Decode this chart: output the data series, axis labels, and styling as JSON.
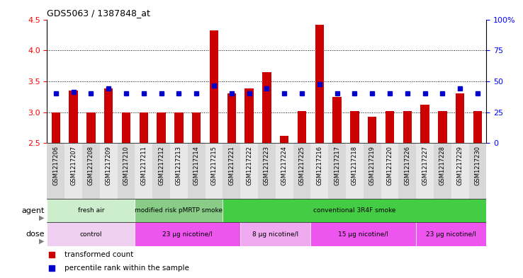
{
  "title": "GDS5063 / 1387848_at",
  "samples": [
    "GSM1217206",
    "GSM1217207",
    "GSM1217208",
    "GSM1217209",
    "GSM1217210",
    "GSM1217211",
    "GSM1217212",
    "GSM1217213",
    "GSM1217214",
    "GSM1217215",
    "GSM1217221",
    "GSM1217222",
    "GSM1217223",
    "GSM1217224",
    "GSM1217225",
    "GSM1217216",
    "GSM1217217",
    "GSM1217218",
    "GSM1217219",
    "GSM1217220",
    "GSM1217226",
    "GSM1217227",
    "GSM1217228",
    "GSM1217229",
    "GSM1217230"
  ],
  "bar_values": [
    3.0,
    3.35,
    3.0,
    3.38,
    3.0,
    3.0,
    3.0,
    3.0,
    3.0,
    4.32,
    3.3,
    3.38,
    3.65,
    2.62,
    3.02,
    4.42,
    3.25,
    3.02,
    2.93,
    3.02,
    3.02,
    3.12,
    3.02,
    3.3,
    3.02
  ],
  "blue_values": [
    3.3,
    3.33,
    3.3,
    3.38,
    3.3,
    3.3,
    3.3,
    3.3,
    3.3,
    3.43,
    3.3,
    3.3,
    3.38,
    3.3,
    3.3,
    3.45,
    3.3,
    3.3,
    3.3,
    3.3,
    3.3,
    3.3,
    3.3,
    3.38,
    3.3
  ],
  "ymin": 2.5,
  "ymax": 4.5,
  "bar_color": "#cc0000",
  "blue_color": "#0000cc",
  "agent_groups": [
    {
      "label": "fresh air",
      "start": 0,
      "end": 4,
      "color": "#cceecc"
    },
    {
      "label": "modified risk pMRTP smoke",
      "start": 5,
      "end": 9,
      "color": "#88cc88"
    },
    {
      "label": "conventional 3R4F smoke",
      "start": 10,
      "end": 24,
      "color": "#44cc44"
    }
  ],
  "dose_groups": [
    {
      "label": "control",
      "start": 0,
      "end": 4,
      "color": "#f0d0f0"
    },
    {
      "label": "23 μg nicotine/l",
      "start": 5,
      "end": 10,
      "color": "#ee55ee"
    },
    {
      "label": "8 μg nicotine/l",
      "start": 11,
      "end": 14,
      "color": "#f0aaf0"
    },
    {
      "label": "15 μg nicotine/l",
      "start": 15,
      "end": 20,
      "color": "#ee55ee"
    },
    {
      "label": "23 μg nicotine/l",
      "start": 21,
      "end": 24,
      "color": "#ee55ee"
    }
  ],
  "yticks_left": [
    2.5,
    3.0,
    3.5,
    4.0,
    4.5
  ],
  "yticks_right_vals": [
    0,
    25,
    50,
    75,
    100
  ],
  "yticks_right_labels": [
    "0",
    "25",
    "50",
    "75",
    "100%"
  ],
  "grid_lines": [
    3.0,
    3.5,
    4.0
  ],
  "col_bg_even": "#d8d8d8",
  "col_bg_odd": "#e8e8e8",
  "agent_label": "agent",
  "dose_label": "dose",
  "legend_items": [
    {
      "color": "#cc0000",
      "label": "transformed count"
    },
    {
      "color": "#0000cc",
      "label": "percentile rank within the sample"
    }
  ]
}
